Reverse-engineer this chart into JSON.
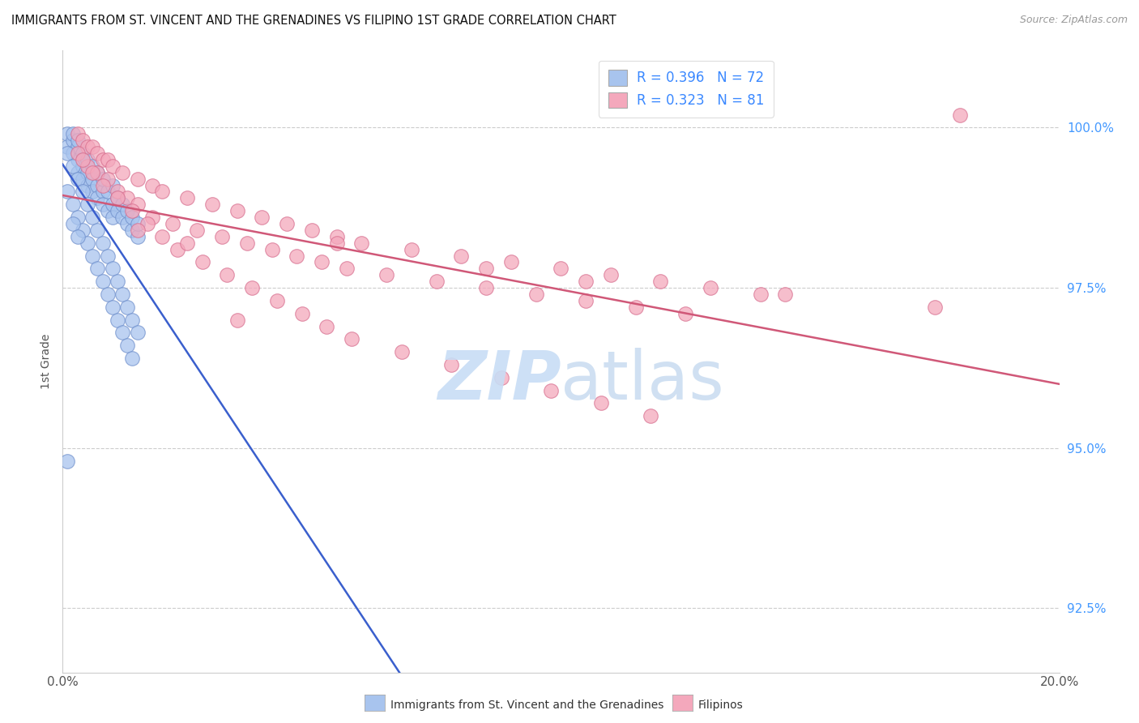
{
  "title": "IMMIGRANTS FROM ST. VINCENT AND THE GRENADINES VS FILIPINO 1ST GRADE CORRELATION CHART",
  "source": "Source: ZipAtlas.com",
  "ylabel": "1st Grade",
  "y_ticks": [
    92.5,
    95.0,
    97.5,
    100.0
  ],
  "y_tick_labels": [
    "92.5%",
    "95.0%",
    "97.5%",
    "100.0%"
  ],
  "x_range": [
    0.0,
    0.2
  ],
  "y_range": [
    91.5,
    101.2
  ],
  "legend_r_blue": "R = 0.396",
  "legend_n_blue": "N = 72",
  "legend_r_pink": "R = 0.323",
  "legend_n_pink": "N = 81",
  "blue_color": "#a8c4ee",
  "pink_color": "#f4a8bc",
  "blue_edge_color": "#7090cc",
  "pink_edge_color": "#d87090",
  "blue_line_color": "#3a5fcd",
  "pink_line_color": "#d05878",
  "legend_label_blue": "Immigrants from St. Vincent and the Grenadines",
  "legend_label_pink": "Filipinos",
  "blue_x": [
    0.001,
    0.001,
    0.002,
    0.002,
    0.002,
    0.003,
    0.003,
    0.003,
    0.003,
    0.004,
    0.004,
    0.004,
    0.004,
    0.005,
    0.005,
    0.005,
    0.006,
    0.006,
    0.006,
    0.007,
    0.007,
    0.007,
    0.008,
    0.008,
    0.008,
    0.009,
    0.009,
    0.01,
    0.01,
    0.01,
    0.011,
    0.011,
    0.012,
    0.012,
    0.013,
    0.013,
    0.014,
    0.014,
    0.015,
    0.015,
    0.001,
    0.002,
    0.003,
    0.004,
    0.005,
    0.006,
    0.007,
    0.008,
    0.009,
    0.01,
    0.011,
    0.012,
    0.013,
    0.014,
    0.015,
    0.001,
    0.002,
    0.003,
    0.004,
    0.005,
    0.006,
    0.007,
    0.008,
    0.009,
    0.01,
    0.011,
    0.012,
    0.013,
    0.014,
    0.001,
    0.002,
    0.003
  ],
  "blue_y": [
    99.9,
    99.7,
    99.8,
    99.9,
    99.6,
    99.5,
    99.7,
    99.8,
    99.3,
    99.4,
    99.6,
    99.5,
    99.2,
    99.3,
    99.5,
    99.1,
    99.2,
    99.4,
    99.0,
    99.1,
    99.3,
    98.9,
    99.0,
    99.2,
    98.8,
    99.0,
    98.7,
    98.8,
    99.1,
    98.6,
    98.7,
    98.9,
    98.6,
    98.8,
    98.5,
    98.7,
    98.4,
    98.6,
    98.3,
    98.5,
    99.6,
    99.4,
    99.2,
    99.0,
    98.8,
    98.6,
    98.4,
    98.2,
    98.0,
    97.8,
    97.6,
    97.4,
    97.2,
    97.0,
    96.8,
    99.0,
    98.8,
    98.6,
    98.4,
    98.2,
    98.0,
    97.8,
    97.6,
    97.4,
    97.2,
    97.0,
    96.8,
    96.6,
    96.4,
    94.8,
    98.5,
    98.3
  ],
  "pink_x": [
    0.003,
    0.004,
    0.005,
    0.006,
    0.007,
    0.008,
    0.009,
    0.01,
    0.012,
    0.015,
    0.018,
    0.02,
    0.025,
    0.03,
    0.035,
    0.04,
    0.045,
    0.05,
    0.055,
    0.06,
    0.07,
    0.08,
    0.09,
    0.1,
    0.11,
    0.12,
    0.13,
    0.14,
    0.003,
    0.005,
    0.007,
    0.009,
    0.011,
    0.013,
    0.015,
    0.018,
    0.022,
    0.027,
    0.032,
    0.037,
    0.042,
    0.047,
    0.052,
    0.057,
    0.065,
    0.075,
    0.085,
    0.095,
    0.105,
    0.115,
    0.125,
    0.004,
    0.006,
    0.008,
    0.011,
    0.014,
    0.017,
    0.02,
    0.023,
    0.028,
    0.033,
    0.038,
    0.043,
    0.048,
    0.053,
    0.058,
    0.068,
    0.078,
    0.088,
    0.098,
    0.108,
    0.118,
    0.18,
    0.055,
    0.085,
    0.105,
    0.145,
    0.175,
    0.015,
    0.025,
    0.035
  ],
  "pink_y": [
    99.9,
    99.8,
    99.7,
    99.7,
    99.6,
    99.5,
    99.5,
    99.4,
    99.3,
    99.2,
    99.1,
    99.0,
    98.9,
    98.8,
    98.7,
    98.6,
    98.5,
    98.4,
    98.3,
    98.2,
    98.1,
    98.0,
    97.9,
    97.8,
    97.7,
    97.6,
    97.5,
    97.4,
    99.6,
    99.4,
    99.3,
    99.2,
    99.0,
    98.9,
    98.8,
    98.6,
    98.5,
    98.4,
    98.3,
    98.2,
    98.1,
    98.0,
    97.9,
    97.8,
    97.7,
    97.6,
    97.5,
    97.4,
    97.3,
    97.2,
    97.1,
    99.5,
    99.3,
    99.1,
    98.9,
    98.7,
    98.5,
    98.3,
    98.1,
    97.9,
    97.7,
    97.5,
    97.3,
    97.1,
    96.9,
    96.7,
    96.5,
    96.3,
    96.1,
    95.9,
    95.7,
    95.5,
    100.2,
    98.2,
    97.8,
    97.6,
    97.4,
    97.2,
    98.4,
    98.2,
    97.0
  ]
}
